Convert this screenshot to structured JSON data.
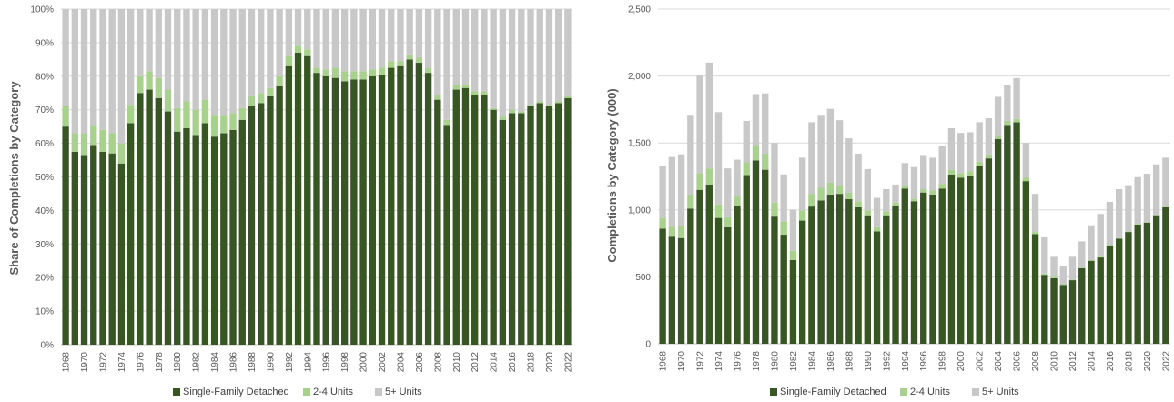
{
  "legend": [
    "Single-Family Detached",
    "2-4 Units",
    "5+ Units"
  ],
  "colors": {
    "sf": "#375623",
    "u24": "#a9d18e",
    "u5": "#c8c8c8",
    "grid": "#d9d9d9",
    "axis": "#bfbfbf"
  },
  "chart_data": [
    {
      "type": "bar",
      "stacked": true,
      "title": "",
      "xlabel": "",
      "ylabel": "Share of Completions by Category",
      "ylim": [
        0,
        100
      ],
      "yticks": [
        "0%",
        "10%",
        "20%",
        "30%",
        "40%",
        "50%",
        "60%",
        "70%",
        "80%",
        "90%",
        "100%"
      ],
      "x_tick_labels": [
        "1968",
        "1970",
        "1972",
        "1974",
        "1976",
        "1978",
        "1980",
        "1982",
        "1984",
        "1986",
        "1988",
        "1990",
        "1992",
        "1994",
        "1996",
        "1998",
        "2000",
        "2002",
        "2004",
        "2006",
        "2008",
        "2010",
        "2012",
        "2014",
        "2016",
        "2018",
        "2020",
        "2022"
      ],
      "categories": [
        1968,
        1969,
        1970,
        1971,
        1972,
        1973,
        1974,
        1975,
        1976,
        1977,
        1978,
        1979,
        1980,
        1981,
        1982,
        1983,
        1984,
        1985,
        1986,
        1987,
        1988,
        1989,
        1990,
        1991,
        1992,
        1993,
        1994,
        1995,
        1996,
        1997,
        1998,
        1999,
        2000,
        2001,
        2002,
        2003,
        2004,
        2005,
        2006,
        2007,
        2008,
        2009,
        2010,
        2011,
        2012,
        2013,
        2014,
        2015,
        2016,
        2017,
        2018,
        2019,
        2020,
        2021,
        2022
      ],
      "grid": true,
      "legend_position": "bottom",
      "series": [
        {
          "name": "Single-Family Detached",
          "values": [
            65,
            57.5,
            56.5,
            59.5,
            57.5,
            57,
            54,
            66,
            75,
            76,
            73.5,
            69.5,
            63.5,
            64.5,
            62.5,
            66,
            62,
            63,
            64,
            67,
            71,
            72,
            74,
            77,
            83,
            87,
            86,
            81,
            80,
            79.5,
            78.5,
            79,
            79,
            80,
            80.5,
            82.5,
            83,
            85,
            84,
            81,
            73,
            65.5,
            76,
            76.5,
            74.5,
            74.5,
            70,
            67,
            69,
            69,
            71,
            72,
            71,
            72,
            73.5
          ]
        },
        {
          "name": "2-4 Units",
          "values": [
            6,
            5.5,
            6.5,
            6,
            6.5,
            6,
            6,
            5.5,
            5,
            5.5,
            6,
            6.5,
            7,
            8,
            7.5,
            7,
            6.5,
            5.5,
            5,
            3.5,
            3,
            3,
            2.5,
            3,
            3,
            2,
            2,
            1.5,
            2,
            3,
            3,
            2.5,
            2.5,
            2,
            2,
            2,
            1.5,
            1.5,
            1.5,
            1.5,
            1.5,
            1.5,
            1.5,
            1,
            1,
            1,
            0.5,
            1,
            1,
            0.5,
            0.5,
            0.5,
            0.5,
            0.5,
            0.5
          ]
        },
        {
          "name": "5+ Units",
          "values": [
            29,
            37,
            37,
            34.5,
            36,
            37,
            40,
            28.5,
            20,
            18.5,
            20.5,
            24,
            29.5,
            27.5,
            30,
            27,
            31.5,
            31.5,
            31,
            29.5,
            26,
            25,
            23.5,
            20,
            14,
            11,
            12,
            17.5,
            18,
            17.5,
            18.5,
            18.5,
            18.5,
            18,
            17.5,
            15.5,
            15.5,
            13.5,
            14.5,
            17.5,
            25.5,
            33,
            22.5,
            22.5,
            24.5,
            24.5,
            29.5,
            32,
            30,
            30.5,
            28.5,
            27.5,
            28.5,
            27.5,
            26
          ]
        }
      ]
    },
    {
      "type": "bar",
      "stacked": true,
      "title": "",
      "xlabel": "",
      "ylabel": "Completions by Category (000)",
      "ylim": [
        0,
        2500
      ],
      "yticks": [
        "0",
        "500",
        "1,000",
        "1,500",
        "2,000",
        "2,500"
      ],
      "x_tick_labels": [
        "1968",
        "1970",
        "1972",
        "1974",
        "1976",
        "1978",
        "1980",
        "1982",
        "1984",
        "1986",
        "1988",
        "1990",
        "1992",
        "1994",
        "1996",
        "1998",
        "2000",
        "2002",
        "2004",
        "2006",
        "2008",
        "2010",
        "2012",
        "2014",
        "2016",
        "2018",
        "2020",
        "2022"
      ],
      "categories": [
        1968,
        1969,
        1970,
        1971,
        1972,
        1973,
        1974,
        1975,
        1976,
        1977,
        1978,
        1979,
        1980,
        1981,
        1982,
        1983,
        1984,
        1985,
        1986,
        1987,
        1988,
        1989,
        1990,
        1991,
        1992,
        1993,
        1994,
        1995,
        1996,
        1997,
        1998,
        1999,
        2000,
        2001,
        2002,
        2003,
        2004,
        2005,
        2006,
        2007,
        2008,
        2009,
        2010,
        2011,
        2012,
        2013,
        2014,
        2015,
        2016,
        2017,
        2018,
        2019,
        2020,
        2021,
        2022
      ],
      "grid": true,
      "legend_position": "bottom",
      "series": [
        {
          "name": "Single-Family Detached",
          "values": [
            860,
            800,
            790,
            1010,
            1150,
            1190,
            940,
            870,
            1030,
            1260,
            1370,
            1300,
            950,
            815,
            625,
            920,
            1025,
            1070,
            1115,
            1120,
            1080,
            1020,
            960,
            840,
            960,
            1030,
            1160,
            1065,
            1130,
            1115,
            1160,
            1265,
            1240,
            1255,
            1325,
            1385,
            1530,
            1635,
            1655,
            1215,
            820,
            515,
            490,
            440,
            475,
            565,
            620,
            645,
            735,
            785,
            835,
            890,
            905,
            960,
            1020
          ]
        },
        {
          "name": "2-4 Units",
          "values": [
            80,
            75,
            90,
            105,
            125,
            120,
            100,
            75,
            70,
            95,
            115,
            120,
            105,
            100,
            70,
            75,
            95,
            95,
            90,
            65,
            50,
            45,
            35,
            30,
            30,
            25,
            25,
            20,
            25,
            30,
            35,
            35,
            35,
            35,
            35,
            30,
            30,
            30,
            25,
            25,
            15,
            10,
            10,
            5,
            5,
            5,
            5,
            5,
            5,
            5,
            5,
            5,
            5,
            5,
            5
          ]
        },
        {
          "name": "5+ Units",
          "values": [
            385,
            520,
            535,
            595,
            735,
            790,
            690,
            365,
            275,
            310,
            380,
            450,
            445,
            350,
            305,
            395,
            535,
            545,
            550,
            485,
            405,
            355,
            310,
            220,
            165,
            135,
            165,
            235,
            255,
            245,
            285,
            310,
            300,
            290,
            295,
            270,
            285,
            270,
            305,
            260,
            285,
            270,
            150,
            135,
            170,
            195,
            260,
            320,
            320,
            365,
            345,
            350,
            360,
            375,
            365
          ]
        }
      ]
    }
  ]
}
